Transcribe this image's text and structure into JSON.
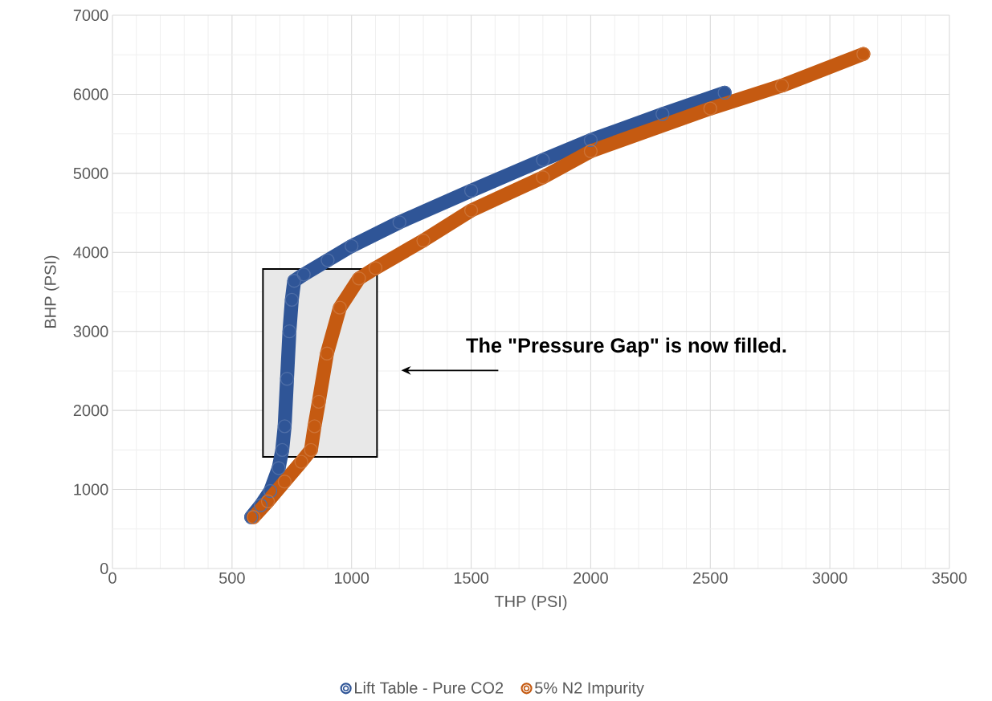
{
  "chart_data": {
    "type": "line",
    "xlabel": "THP (PSI)",
    "ylabel": "BHP (PSI)",
    "xlim": [
      0,
      3500
    ],
    "xticks": [
      0,
      500,
      1000,
      1500,
      2000,
      2500,
      3000,
      3500
    ],
    "ylim": [
      0,
      7000
    ],
    "yticks": [
      0,
      1000,
      2000,
      3000,
      4000,
      5000,
      6000,
      7000
    ],
    "grid": true,
    "legend": "bottom",
    "marker": "circle",
    "series": [
      {
        "name": "Lift Table - Pure CO2",
        "color": "#2f5597",
        "x": [
          580,
          620,
          660,
          695,
          710,
          720,
          730,
          740,
          750,
          760,
          800,
          900,
          1000,
          1200,
          1500,
          1800,
          2000,
          2300,
          2560
        ],
        "values": [
          650,
          800,
          980,
          1270,
          1500,
          1800,
          2400,
          3000,
          3400,
          3640,
          3720,
          3900,
          4080,
          4380,
          4780,
          5170,
          5420,
          5750,
          6020
        ]
      },
      {
        "name": "5% N2 Impurity",
        "color": "#c55a11",
        "x": [
          590,
          650,
          720,
          790,
          830,
          845,
          863,
          897,
          951,
          1031,
          1100,
          1300,
          1500,
          1800,
          2000,
          2500,
          2800,
          3140
        ],
        "values": [
          650,
          850,
          1100,
          1350,
          1500,
          1800,
          2110,
          2720,
          3300,
          3670,
          3800,
          4150,
          4530,
          4950,
          5280,
          5820,
          6110,
          6510
        ]
      }
    ],
    "annotations": [
      "The \"Pressure Gap\" is now filled."
    ]
  }
}
